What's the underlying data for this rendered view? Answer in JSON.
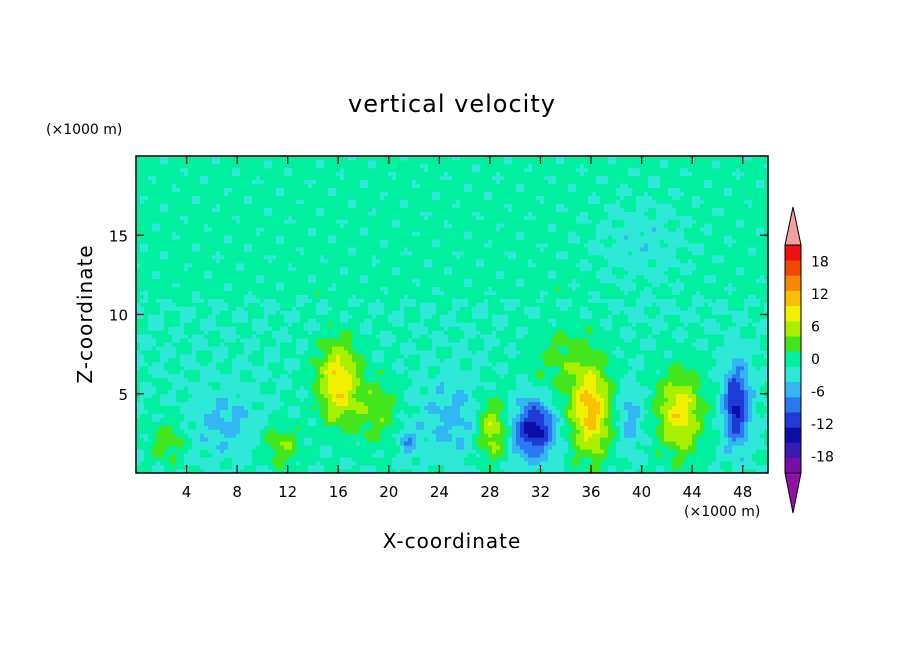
{
  "chart_data": {
    "type": "heatmap",
    "title": "vertical velocity",
    "xlabel": "X-coordinate",
    "ylabel": "Z-coordinate",
    "x_units": "(×1000 m)",
    "y_units": "(×1000 m)",
    "xlim": [
      0,
      50
    ],
    "ylim": [
      0,
      20
    ],
    "x_ticks": [
      "4",
      "8",
      "12",
      "16",
      "20",
      "24",
      "28",
      "32",
      "36",
      "40",
      "44",
      "48"
    ],
    "x_tick_values": [
      4,
      8,
      12,
      16,
      20,
      24,
      28,
      32,
      36,
      40,
      44,
      48
    ],
    "y_ticks": [
      "5",
      "10",
      "15"
    ],
    "y_tick_values": [
      5,
      10,
      15
    ],
    "colorbar": {
      "levels": [
        -21,
        -18,
        -15,
        -12,
        -9,
        -6,
        -3,
        0,
        3,
        6,
        9,
        12,
        15,
        18,
        21
      ],
      "tick_labels": [
        "18",
        "12",
        "6",
        "0",
        "-6",
        "-12",
        "-18"
      ],
      "tick_values": [
        18,
        12,
        6,
        0,
        -6,
        -12,
        -18
      ],
      "colors": [
        "#7a0fa8",
        "#3b1ab0",
        "#0d0da8",
        "#1f3ad6",
        "#2b78f0",
        "#32b6f4",
        "#2ee8d8",
        "#00f0a0",
        "#43e61c",
        "#a8f000",
        "#f0f000",
        "#f8c000",
        "#f88800",
        "#f04800",
        "#f01010"
      ],
      "over_color": "#f5a0a0",
      "under_color": "#9010a8"
    },
    "features": [
      {
        "x": 16.0,
        "z": 5.8,
        "amp": 12,
        "sx": 1.6,
        "sz": 2.6
      },
      {
        "x": 28.2,
        "z": 2.8,
        "amp": 9,
        "sx": 1.2,
        "sz": 2.0
      },
      {
        "x": 31.5,
        "z": 2.8,
        "amp": -14,
        "sx": 1.6,
        "sz": 1.8
      },
      {
        "x": 36.0,
        "z": 3.8,
        "amp": 13,
        "sx": 1.6,
        "sz": 2.8
      },
      {
        "x": 43.0,
        "z": 3.8,
        "amp": 11,
        "sx": 1.8,
        "sz": 2.6
      },
      {
        "x": 47.5,
        "z": 4.3,
        "amp": -13,
        "sx": 1.0,
        "sz": 2.5
      },
      {
        "x": 11.5,
        "z": 1.8,
        "amp": 6,
        "sx": 1.5,
        "sz": 1.3
      },
      {
        "x": 2.5,
        "z": 2.0,
        "amp": 5,
        "sx": 1.4,
        "sz": 1.3
      },
      {
        "x": 19.0,
        "z": 4.0,
        "amp": 5,
        "sx": 1.8,
        "sz": 2.2
      },
      {
        "x": 25.0,
        "z": 3.5,
        "amp": -4,
        "sx": 2.5,
        "sz": 2.5
      },
      {
        "x": 7.0,
        "z": 3.2,
        "amp": -4,
        "sx": 2.5,
        "sz": 2.0
      },
      {
        "x": 39.0,
        "z": 3.5,
        "amp": -5,
        "sx": 1.0,
        "sz": 2.0
      },
      {
        "x": 21.5,
        "z": 2.0,
        "amp": -5,
        "sx": 0.8,
        "sz": 1.0
      },
      {
        "x": 34.0,
        "z": 7.0,
        "amp": 4,
        "sx": 3.0,
        "sz": 2.5
      },
      {
        "x": 40.0,
        "z": 14.5,
        "amp": -3,
        "sx": 4.0,
        "sz": 3.0
      }
    ]
  }
}
